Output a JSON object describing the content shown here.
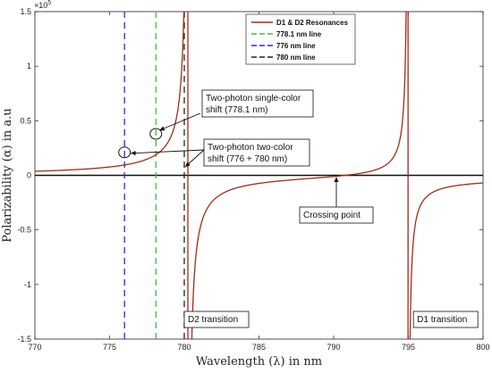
{
  "chart_data": {
    "type": "line",
    "xlabel": "Wavelength (λ) in nm",
    "ylabel": "Polarizability (α) in a.u",
    "y_multiplier": "×10",
    "y_multiplier_exp": "5",
    "xlim": [
      770,
      800
    ],
    "ylim": [
      -1.5,
      1.5
    ],
    "x_ticks": [
      770,
      775,
      780,
      785,
      790,
      795,
      800
    ],
    "y_ticks": [
      -1.5,
      -1,
      -0.5,
      0,
      0.5,
      1,
      1.5
    ],
    "x_tick_labels": [
      "770",
      "775",
      "780",
      "785",
      "790",
      "795",
      "800"
    ],
    "y_tick_labels": [
      "-1.5",
      "-1",
      "-0.5",
      "0",
      "0.5",
      "1",
      "1.5"
    ],
    "grid": false,
    "legend_position": "top-right",
    "series": [
      {
        "name": "D1 & D2 Resonances",
        "color": "#a52a1a",
        "style": "solid",
        "model": {
          "offset": -0.0097,
          "poles": [
            {
              "x": 780.24,
              "amplitude": -0.4
            },
            {
              "x": 794.98,
              "amplitude": -0.2
            }
          ]
        }
      },
      {
        "name": "778.1 nm line",
        "color": "#3cc23c",
        "style": "dashed",
        "x": 778.1
      },
      {
        "name": "776 nm line",
        "color": "#2a2ad8",
        "style": "dashed",
        "x": 776
      },
      {
        "name": "780 nm line",
        "color": "#222222",
        "style": "dashed",
        "x": 780
      }
    ],
    "transition_lines": [
      {
        "x": 780.24,
        "label": "D2 transition"
      },
      {
        "x": 794.98,
        "label": "D1 transition"
      }
    ],
    "markers": [
      {
        "x": 778.1,
        "y": 0.38
      },
      {
        "x": 776,
        "y": 0.21
      }
    ],
    "annotations": [
      {
        "lines": [
          "Two-photon single-color",
          "shift (778.1 nm)"
        ]
      },
      {
        "lines": [
          "Two-photon two-color",
          "shift (776 + 780 nm)"
        ]
      },
      {
        "lines": [
          "Crossing point"
        ]
      }
    ]
  }
}
